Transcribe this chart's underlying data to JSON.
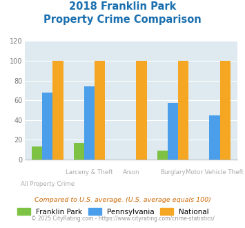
{
  "title_line1": "2018 Franklin Park",
  "title_line2": "Property Crime Comparison",
  "categories": [
    "All Property Crime",
    "Larceny & Theft",
    "Arson",
    "Burglary",
    "Motor Vehicle Theft"
  ],
  "franklin_park": [
    13,
    17,
    0,
    9,
    0
  ],
  "pennsylvania": [
    68,
    74,
    0,
    57,
    45
  ],
  "national": [
    100,
    100,
    100,
    100,
    100
  ],
  "ylim": [
    0,
    120
  ],
  "yticks": [
    0,
    20,
    40,
    60,
    80,
    100,
    120
  ],
  "color_franklin": "#7dc242",
  "color_pennsylvania": "#4b9fea",
  "color_national": "#f5a623",
  "bg_color": "#deeaf0",
  "title_color": "#1a6faf",
  "footnote1": "Compared to U.S. average. (U.S. average equals 100)",
  "footnote2": "© 2025 CityRating.com - https://www.cityrating.com/crime-statistics/",
  "footnote1_color": "#cc6600",
  "footnote2_color": "#999999",
  "label_color": "#aaaaaa",
  "xlabel_row1": [
    "",
    "Larceny & Theft",
    "Arson",
    "Burglary",
    "Motor Vehicle Theft"
  ],
  "xlabel_row2": [
    "All Property Crime",
    "",
    "",
    "",
    ""
  ]
}
